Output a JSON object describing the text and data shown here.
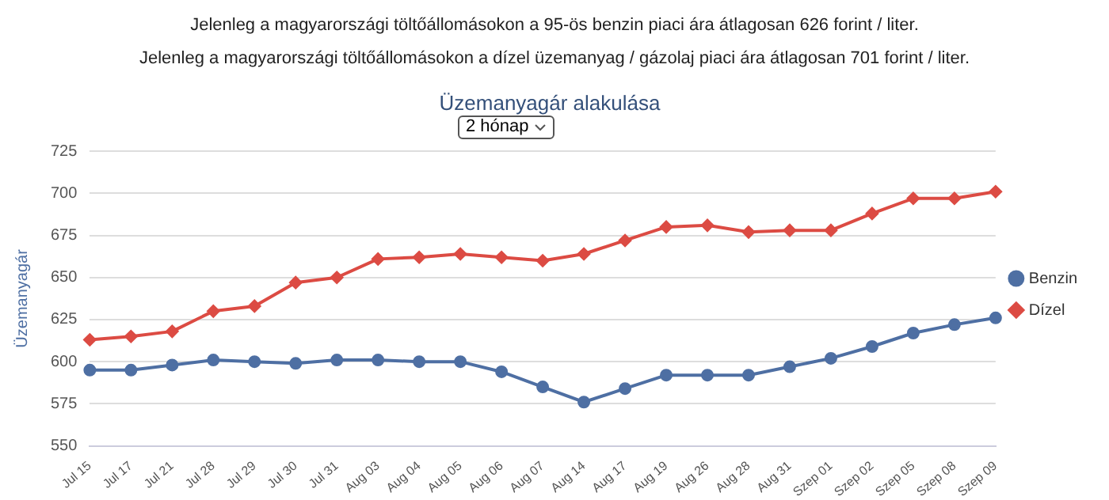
{
  "chart_data": {
    "type": "line",
    "title": "Üzemanyagár alakulása",
    "ylabel": "Üzemanyagár",
    "annotations": [
      "Jelenleg a magyarországi töltőállomásokon a 95-ös benzin piaci ára átlagosan 626 forint / liter.",
      "Jelenleg a magyarországi töltőállomásokon a dízel üzemanyag / gázolaj piaci ára átlagosan 701 forint / liter.",
      "2 hónap"
    ],
    "categories": [
      "Jul 15",
      "Jul 17",
      "Jul 21",
      "Jul 28",
      "Jul 29",
      "Jul 30",
      "Jul 31",
      "Aug 03",
      "Aug 04",
      "Aug 05",
      "Aug 06",
      "Aug 07",
      "Aug 14",
      "Aug 17",
      "Aug 19",
      "Aug 26",
      "Aug 28",
      "Aug 31",
      "Szep 01",
      "Szep 02",
      "Szep 05",
      "Szep 08",
      "Szep 09"
    ],
    "series": [
      {
        "name": "Benzin",
        "color": "#4e6fa3",
        "marker": "circle",
        "values": [
          595,
          595,
          598,
          601,
          600,
          599,
          601,
          601,
          600,
          600,
          594,
          585,
          576,
          584,
          592,
          592,
          592,
          597,
          602,
          609,
          617,
          622,
          626
        ]
      },
      {
        "name": "Dízel",
        "color": "#dc4b43",
        "marker": "diamond",
        "values": [
          613,
          615,
          618,
          630,
          633,
          647,
          650,
          661,
          662,
          664,
          662,
          660,
          664,
          672,
          680,
          681,
          677,
          678,
          678,
          688,
          697,
          697,
          701
        ]
      }
    ],
    "ylim": [
      550,
      725
    ],
    "yticks": [
      550,
      575,
      600,
      625,
      650,
      675,
      700,
      725
    ],
    "grid": "y",
    "legend": "right"
  }
}
